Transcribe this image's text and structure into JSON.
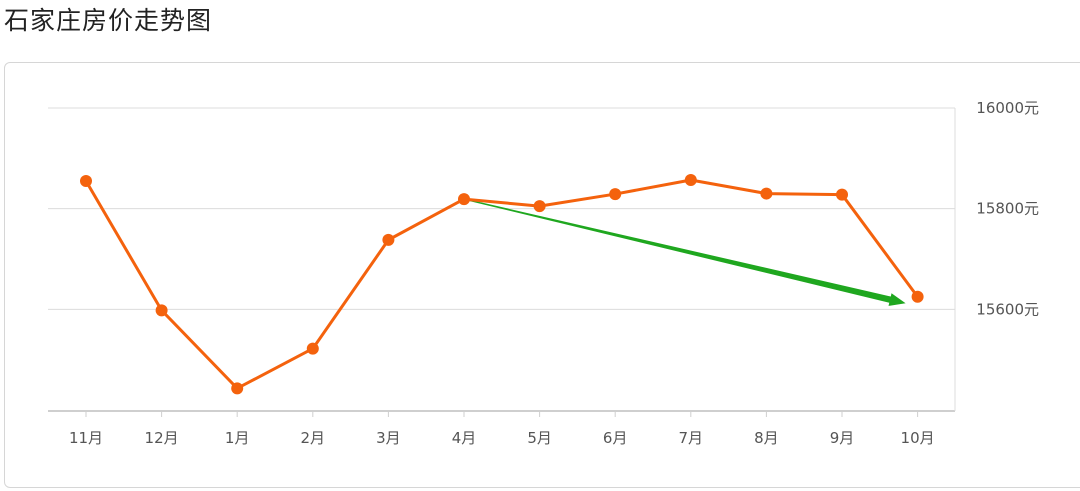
{
  "page": {
    "title": "石家庄房价走势图"
  },
  "colors": {
    "line": "#f4620d",
    "grid": "#dcdcdc",
    "axis": "#cfcfcf",
    "trend_arrow": "#1fa71f",
    "text": "#555555"
  },
  "chart_data": {
    "type": "line",
    "title": "石家庄房价走势图",
    "categories": [
      "11月",
      "12月",
      "1月",
      "2月",
      "3月",
      "4月",
      "5月",
      "6月",
      "7月",
      "8月",
      "9月",
      "10月"
    ],
    "series": [
      {
        "values": [
          15855,
          15598,
          15443,
          15522,
          15738,
          15819,
          15805,
          15829,
          15857,
          15830,
          15828,
          15625
        ]
      }
    ],
    "y_ticks": [
      {
        "value": 16000,
        "label": "16000元"
      },
      {
        "value": 15800,
        "label": "15800元"
      },
      {
        "value": 15600,
        "label": "15600元"
      }
    ],
    "ylim": [
      15400,
      16000
    ],
    "y_axis_side": "right",
    "grid": true,
    "annotation": {
      "type": "arrow",
      "from": {
        "category": "4月",
        "value": 15819
      },
      "to": {
        "category": "10月",
        "value": 15612
      }
    }
  }
}
